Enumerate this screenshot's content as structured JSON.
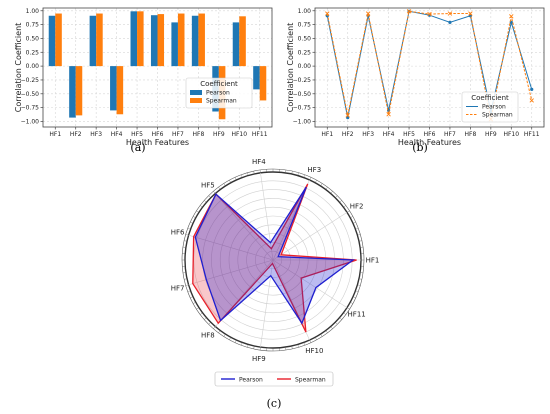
{
  "chart_data": [
    {
      "type": "bar",
      "panel_label": "(a)",
      "xlabel": "Health Features",
      "ylabel": "Correlation Coefficient",
      "categories": [
        "HF1",
        "HF2",
        "HF3",
        "HF4",
        "HF5",
        "HF6",
        "HF7",
        "HF8",
        "HF9",
        "HF10",
        "HF11"
      ],
      "ylim": [
        -1.1,
        1.05
      ],
      "yticks": [
        "1.00",
        "0.75",
        "0.50",
        "0.25",
        "0.00",
        "−0.25",
        "−0.50",
        "−0.75",
        "−1.00"
      ],
      "ytick_values": [
        1.0,
        0.75,
        0.5,
        0.25,
        0.0,
        -0.25,
        -0.5,
        -0.75,
        -1.0
      ],
      "grid": true,
      "legend": {
        "title": "Coefficient",
        "placement": "bottom-right"
      },
      "series": [
        {
          "name": "Pearson",
          "color": "#1f77b4",
          "values": [
            0.91,
            -0.93,
            0.91,
            -0.8,
            0.99,
            0.92,
            0.79,
            0.91,
            -0.82,
            0.79,
            -0.42
          ]
        },
        {
          "name": "Spearman",
          "color": "#ff7f0e",
          "values": [
            0.95,
            -0.89,
            0.95,
            -0.87,
            0.99,
            0.94,
            0.95,
            0.95,
            -0.96,
            0.9,
            -0.62
          ]
        }
      ]
    },
    {
      "type": "line",
      "panel_label": "(b)",
      "xlabel": "Health Features",
      "ylabel": "Correlation Coefficient",
      "categories": [
        "HF1",
        "HF2",
        "HF3",
        "HF4",
        "HF5",
        "HF6",
        "HF7",
        "HF8",
        "HF9",
        "HF10",
        "HF11"
      ],
      "ylim": [
        -1.1,
        1.05
      ],
      "yticks": [
        "1.00",
        "0.75",
        "0.50",
        "0.25",
        "0.00",
        "−0.25",
        "−0.50",
        "−0.75",
        "−1.00"
      ],
      "ytick_values": [
        1.0,
        0.75,
        0.5,
        0.25,
        0.0,
        -0.25,
        -0.5,
        -0.75,
        -1.0
      ],
      "grid": true,
      "legend": {
        "title": "Coefficient",
        "placement": "bottom-right"
      },
      "series": [
        {
          "name": "Pearson",
          "color": "#1f77b4",
          "values": [
            0.91,
            -0.93,
            0.91,
            -0.8,
            0.99,
            0.92,
            0.79,
            0.91,
            -0.82,
            0.79,
            -0.42
          ]
        },
        {
          "name": "Spearman",
          "color": "#ff7f0e",
          "values": [
            0.95,
            -0.89,
            0.95,
            -0.87,
            0.99,
            0.94,
            0.95,
            0.95,
            -0.96,
            0.9,
            -0.62
          ]
        }
      ]
    },
    {
      "type": "radar",
      "panel_label": "(c)",
      "categories": [
        "HF1",
        "HF2",
        "HF3",
        "HF4",
        "HF5",
        "HF6",
        "HF7",
        "HF8",
        "HF9",
        "HF10",
        "HF11"
      ],
      "rlim": [
        0,
        1
      ],
      "grid": true,
      "legend": {
        "placement": "bottom"
      },
      "series": [
        {
          "name": "Pearson",
          "color": "#1f1fd0",
          "values": [
            0.91,
            0.07,
            0.91,
            0.2,
            0.99,
            0.92,
            0.79,
            0.91,
            0.18,
            0.79,
            0.58
          ]
        },
        {
          "name": "Spearman",
          "color": "#e8202a",
          "values": [
            0.95,
            0.11,
            0.95,
            0.13,
            0.99,
            0.94,
            0.95,
            0.95,
            0.04,
            0.9,
            0.38
          ]
        }
      ]
    }
  ]
}
